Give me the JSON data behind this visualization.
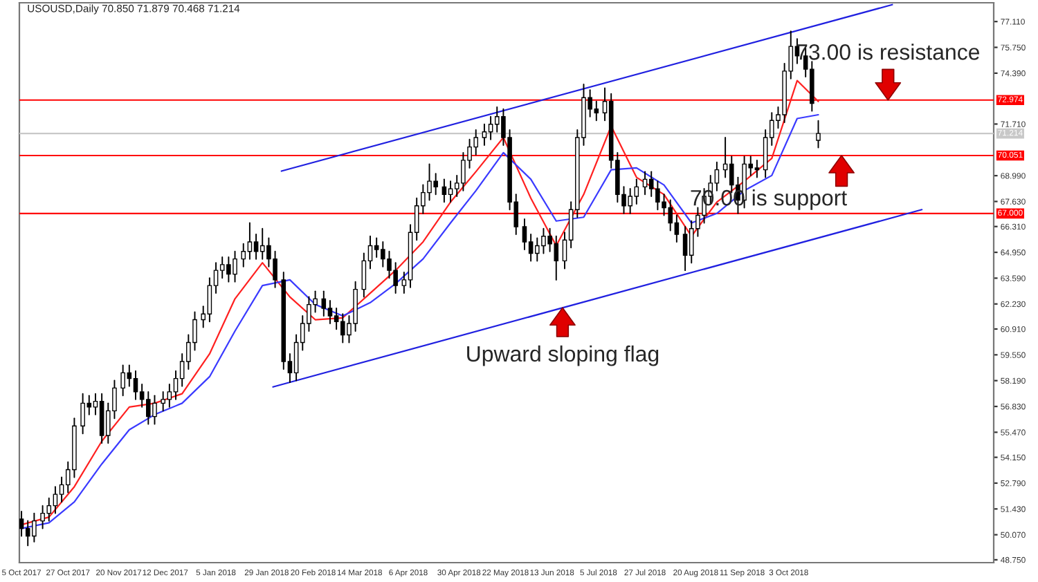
{
  "chart_data": {
    "type": "candlestick",
    "title": "USOUSD,Daily 70.850 71.879 70.468 71.214",
    "x": [
      "2017-10-05",
      "2017-10-08",
      "2017-10-11",
      "2017-10-15",
      "2017-10-18",
      "2017-10-21",
      "2017-10-24",
      "2017-10-27",
      "2017-10-30",
      "2017-11-03",
      "2017-11-06",
      "2017-11-09",
      "2017-11-12",
      "2017-11-15",
      "2017-11-18",
      "2017-11-22",
      "2017-11-25",
      "2017-11-28",
      "2017-12-01",
      "2017-12-04",
      "2017-12-07",
      "2017-12-11",
      "2017-12-14",
      "2017-12-17",
      "2017-12-20",
      "2017-12-23",
      "2017-12-26",
      "2017-12-30",
      "2018-01-02",
      "2018-01-05",
      "2018-01-08",
      "2018-01-11",
      "2018-01-14",
      "2018-01-18",
      "2018-01-21",
      "2018-01-24",
      "2018-01-27",
      "2018-01-30",
      "2018-02-02",
      "2018-02-06",
      "2018-02-09",
      "2018-02-12",
      "2018-02-15",
      "2018-02-18",
      "2018-02-21",
      "2018-02-25",
      "2018-02-28",
      "2018-03-03",
      "2018-03-06",
      "2018-03-09",
      "2018-03-12",
      "2018-03-16",
      "2018-03-19",
      "2018-03-22",
      "2018-03-25",
      "2018-03-28",
      "2018-03-31",
      "2018-04-04",
      "2018-04-07",
      "2018-04-10",
      "2018-04-13",
      "2018-04-16",
      "2018-04-19",
      "2018-04-23",
      "2018-04-26",
      "2018-04-29",
      "2018-05-02",
      "2018-05-05",
      "2018-05-08",
      "2018-05-12",
      "2018-05-15",
      "2018-05-18",
      "2018-05-21",
      "2018-05-24",
      "2018-05-27",
      "2018-05-31",
      "2018-06-03",
      "2018-06-06",
      "2018-06-09",
      "2018-06-12",
      "2018-06-15",
      "2018-06-19",
      "2018-06-22",
      "2018-06-25",
      "2018-06-28",
      "2018-07-01",
      "2018-07-04",
      "2018-07-08",
      "2018-07-11",
      "2018-07-14",
      "2018-07-17",
      "2018-07-20",
      "2018-07-23",
      "2018-07-27",
      "2018-07-30",
      "2018-08-02",
      "2018-08-05",
      "2018-08-08",
      "2018-08-11",
      "2018-08-15",
      "2018-08-18",
      "2018-08-21",
      "2018-08-24",
      "2018-08-27",
      "2018-08-30",
      "2018-09-03",
      "2018-09-06",
      "2018-09-09",
      "2018-09-12",
      "2018-09-15",
      "2018-09-18",
      "2018-09-22",
      "2018-09-25",
      "2018-09-28",
      "2018-10-01",
      "2018-10-04",
      "2018-10-07",
      "2018-10-11",
      "2018-10-14",
      "2018-10-17"
    ],
    "ohlc": [
      [
        50.9,
        51.3,
        50.0,
        50.4
      ],
      [
        50.4,
        50.8,
        49.5,
        50.0
      ],
      [
        50.0,
        51.2,
        49.7,
        50.8
      ],
      [
        50.8,
        51.6,
        50.4,
        51.2
      ],
      [
        51.2,
        52.0,
        50.8,
        51.6
      ],
      [
        51.6,
        52.6,
        51.2,
        52.2
      ],
      [
        52.2,
        53.1,
        51.8,
        52.7
      ],
      [
        52.7,
        53.9,
        52.3,
        53.5
      ],
      [
        53.5,
        56.2,
        53.1,
        55.8
      ],
      [
        55.8,
        57.5,
        55.4,
        57.0
      ],
      [
        57.0,
        57.4,
        56.4,
        56.8
      ],
      [
        56.8,
        57.5,
        56.4,
        57.1
      ],
      [
        57.1,
        57.5,
        54.9,
        55.3
      ],
      [
        55.3,
        57.0,
        54.9,
        56.6
      ],
      [
        56.6,
        58.2,
        56.2,
        57.8
      ],
      [
        57.8,
        59.0,
        57.4,
        58.6
      ],
      [
        58.6,
        59.0,
        57.9,
        58.3
      ],
      [
        58.3,
        58.7,
        57.2,
        57.6
      ],
      [
        57.6,
        58.0,
        56.8,
        57.2
      ],
      [
        57.2,
        57.6,
        55.9,
        56.3
      ],
      [
        56.3,
        57.4,
        55.9,
        57.0
      ],
      [
        57.0,
        57.6,
        56.6,
        57.2
      ],
      [
        57.2,
        58.0,
        56.8,
        57.6
      ],
      [
        57.6,
        58.7,
        57.2,
        58.3
      ],
      [
        58.3,
        59.6,
        57.9,
        59.2
      ],
      [
        59.2,
        60.6,
        58.8,
        60.2
      ],
      [
        60.2,
        61.8,
        59.8,
        61.4
      ],
      [
        61.4,
        62.1,
        61.0,
        61.7
      ],
      [
        61.7,
        63.6,
        61.3,
        63.2
      ],
      [
        63.2,
        64.4,
        62.8,
        64.0
      ],
      [
        64.0,
        64.7,
        63.6,
        64.3
      ],
      [
        64.3,
        64.7,
        63.4,
        63.8
      ],
      [
        63.8,
        65.0,
        63.4,
        64.6
      ],
      [
        64.6,
        65.4,
        64.2,
        65.0
      ],
      [
        65.0,
        66.5,
        64.6,
        65.5
      ],
      [
        65.5,
        65.9,
        64.6,
        65.0
      ],
      [
        65.0,
        66.2,
        64.6,
        65.3
      ],
      [
        65.3,
        65.7,
        64.2,
        64.6
      ],
      [
        64.6,
        65.0,
        63.1,
        63.5
      ],
      [
        63.5,
        63.9,
        58.8,
        59.2
      ],
      [
        59.2,
        59.6,
        58.1,
        58.6
      ],
      [
        58.6,
        60.6,
        58.2,
        60.2
      ],
      [
        60.2,
        61.6,
        59.8,
        61.2
      ],
      [
        61.2,
        62.6,
        60.8,
        62.2
      ],
      [
        62.2,
        62.9,
        61.8,
        62.5
      ],
      [
        62.5,
        62.9,
        61.6,
        62.0
      ],
      [
        62.0,
        62.4,
        61.2,
        61.6
      ],
      [
        61.6,
        62.0,
        60.9,
        61.3
      ],
      [
        61.3,
        61.7,
        60.2,
        60.6
      ],
      [
        60.6,
        61.6,
        60.2,
        61.2
      ],
      [
        61.2,
        63.4,
        60.8,
        63.0
      ],
      [
        63.0,
        64.9,
        62.6,
        64.5
      ],
      [
        64.5,
        65.8,
        64.1,
        65.3
      ],
      [
        65.3,
        65.7,
        64.7,
        65.1
      ],
      [
        65.1,
        65.5,
        64.2,
        64.6
      ],
      [
        64.6,
        65.0,
        63.6,
        64.0
      ],
      [
        64.0,
        64.4,
        62.8,
        63.2
      ],
      [
        63.2,
        63.9,
        62.8,
        63.5
      ],
      [
        63.5,
        66.4,
        63.1,
        66.0
      ],
      [
        66.0,
        67.8,
        65.6,
        67.4
      ],
      [
        67.4,
        68.5,
        67.0,
        68.1
      ],
      [
        68.1,
        69.6,
        67.7,
        68.7
      ],
      [
        68.7,
        69.1,
        68.0,
        68.4
      ],
      [
        68.4,
        68.8,
        67.6,
        68.0
      ],
      [
        68.0,
        68.7,
        67.6,
        68.3
      ],
      [
        68.3,
        69.0,
        67.9,
        68.6
      ],
      [
        68.6,
        70.2,
        68.2,
        69.8
      ],
      [
        69.8,
        70.9,
        69.4,
        70.5
      ],
      [
        70.5,
        71.4,
        70.1,
        71.0
      ],
      [
        71.0,
        71.7,
        70.6,
        71.3
      ],
      [
        71.3,
        72.1,
        70.9,
        71.7
      ],
      [
        71.7,
        72.6,
        71.3,
        72.1
      ],
      [
        72.1,
        72.5,
        70.6,
        71.0
      ],
      [
        71.0,
        71.4,
        67.2,
        67.6
      ],
      [
        67.6,
        68.0,
        65.9,
        66.3
      ],
      [
        66.3,
        66.7,
        65.1,
        65.5
      ],
      [
        65.5,
        65.9,
        64.5,
        64.9
      ],
      [
        64.9,
        65.7,
        64.5,
        65.3
      ],
      [
        65.3,
        66.2,
        64.9,
        65.8
      ],
      [
        65.8,
        66.2,
        65.0,
        65.4
      ],
      [
        65.4,
        65.8,
        63.5,
        64.5
      ],
      [
        64.5,
        66.0,
        64.1,
        65.6
      ],
      [
        65.6,
        67.6,
        65.2,
        67.2
      ],
      [
        67.2,
        71.4,
        66.8,
        71.0
      ],
      [
        71.0,
        73.8,
        70.6,
        73.1
      ],
      [
        73.1,
        73.5,
        72.1,
        72.5
      ],
      [
        72.5,
        72.9,
        71.9,
        72.3
      ],
      [
        72.3,
        73.6,
        71.9,
        72.9
      ],
      [
        72.9,
        73.3,
        69.4,
        69.8
      ],
      [
        69.8,
        70.2,
        67.6,
        68.0
      ],
      [
        68.0,
        68.4,
        67.0,
        67.4
      ],
      [
        67.4,
        68.3,
        67.0,
        67.9
      ],
      [
        67.9,
        68.8,
        67.5,
        68.4
      ],
      [
        68.4,
        69.2,
        68.0,
        68.8
      ],
      [
        68.8,
        69.2,
        67.9,
        68.3
      ],
      [
        68.3,
        68.7,
        67.2,
        67.6
      ],
      [
        67.6,
        68.0,
        66.9,
        67.3
      ],
      [
        67.3,
        67.7,
        66.1,
        66.5
      ],
      [
        66.5,
        66.9,
        65.5,
        65.9
      ],
      [
        65.9,
        66.3,
        64.0,
        64.8
      ],
      [
        64.8,
        66.6,
        64.4,
        66.2
      ],
      [
        66.2,
        67.3,
        65.8,
        66.9
      ],
      [
        66.9,
        68.3,
        66.5,
        67.9
      ],
      [
        67.9,
        69.0,
        67.5,
        68.6
      ],
      [
        68.6,
        69.7,
        68.2,
        69.3
      ],
      [
        69.3,
        71.0,
        68.9,
        69.6
      ],
      [
        69.6,
        70.0,
        68.1,
        68.5
      ],
      [
        68.5,
        68.9,
        67.0,
        67.7
      ],
      [
        67.7,
        70.0,
        67.3,
        69.6
      ],
      [
        69.6,
        70.0,
        69.0,
        69.4
      ],
      [
        69.4,
        69.8,
        68.9,
        69.3
      ],
      [
        69.3,
        71.4,
        68.9,
        71.0
      ],
      [
        71.0,
        72.3,
        70.6,
        71.9
      ],
      [
        71.9,
        72.6,
        71.5,
        72.2
      ],
      [
        72.2,
        74.9,
        71.8,
        74.5
      ],
      [
        74.5,
        76.6,
        74.1,
        75.8
      ],
      [
        75.8,
        76.2,
        74.9,
        75.3
      ],
      [
        75.3,
        75.7,
        74.2,
        74.6
      ],
      [
        74.6,
        75.0,
        72.4,
        72.8
      ],
      [
        70.85,
        71.879,
        70.468,
        71.214
      ]
    ],
    "series": [
      {
        "type": "line",
        "color": "#ff2020",
        "x": [
          "2017-10-05",
          "2017-10-18",
          "2017-10-30",
          "2017-11-12",
          "2017-11-25",
          "2017-12-07",
          "2017-12-20",
          "2018-01-02",
          "2018-01-14",
          "2018-01-27",
          "2018-02-09",
          "2018-02-21",
          "2018-03-06",
          "2018-03-19",
          "2018-03-31",
          "2018-04-13",
          "2018-04-26",
          "2018-05-08",
          "2018-05-21",
          "2018-06-03",
          "2018-06-15",
          "2018-06-28",
          "2018-07-11",
          "2018-07-23",
          "2018-08-05",
          "2018-08-18",
          "2018-08-30",
          "2018-09-12",
          "2018-09-25",
          "2018-10-07",
          "2018-10-17"
        ],
        "values": [
          50.6,
          51.0,
          52.6,
          55.0,
          56.8,
          57.0,
          57.5,
          59.6,
          62.5,
          64.4,
          62.6,
          61.4,
          61.5,
          62.8,
          64.0,
          65.5,
          67.6,
          69.2,
          71.0,
          67.8,
          65.3,
          68.0,
          71.6,
          68.9,
          68.0,
          65.8,
          67.6,
          68.7,
          69.9,
          74.0,
          72.9
        ]
      },
      {
        "type": "line",
        "color": "#3a3aff",
        "x": [
          "2017-10-05",
          "2017-10-18",
          "2017-10-30",
          "2017-11-12",
          "2017-11-25",
          "2017-12-07",
          "2017-12-20",
          "2018-01-02",
          "2018-01-14",
          "2018-01-27",
          "2018-02-09",
          "2018-02-21",
          "2018-03-06",
          "2018-03-19",
          "2018-03-31",
          "2018-04-13",
          "2018-04-26",
          "2018-05-08",
          "2018-05-21",
          "2018-06-03",
          "2018-06-15",
          "2018-06-28",
          "2018-07-11",
          "2018-07-23",
          "2018-08-05",
          "2018-08-18",
          "2018-08-30",
          "2018-09-12",
          "2018-09-25",
          "2018-10-07",
          "2018-10-17"
        ],
        "values": [
          50.4,
          50.7,
          51.8,
          53.8,
          55.6,
          56.4,
          57.0,
          58.4,
          60.8,
          63.2,
          63.5,
          62.2,
          61.6,
          62.3,
          63.3,
          64.6,
          66.5,
          68.2,
          70.2,
          68.8,
          66.6,
          66.8,
          69.3,
          69.4,
          68.5,
          66.5,
          67.0,
          68.2,
          69.0,
          72.0,
          72.2
        ]
      },
      {
        "type": "line",
        "color": "#2020e0",
        "x": [
          "2018-02-05",
          "2018-11-21"
        ],
        "values": [
          69.23,
          78.0
        ]
      },
      {
        "type": "line",
        "color": "#2020e0",
        "x": [
          "2018-02-01",
          "2018-12-05"
        ],
        "values": [
          57.86,
          67.2
        ]
      }
    ],
    "xlim": [
      "2017-10-04",
      "2019-01-08"
    ],
    "xticks": [
      {
        "value": "2017-10-05",
        "label": "5 Oct 2017"
      },
      {
        "value": "2017-10-27",
        "label": "27 Oct 2017"
      },
      {
        "value": "2017-11-20",
        "label": "20 Nov 2017"
      },
      {
        "value": "2017-12-12",
        "label": "12 Dec 2017"
      },
      {
        "value": "2018-01-05",
        "label": "5 Jan 2018"
      },
      {
        "value": "2018-01-29",
        "label": "29 Jan 2018"
      },
      {
        "value": "2018-02-20",
        "label": "20 Feb 2018"
      },
      {
        "value": "2018-03-14",
        "label": "14 Mar 2018"
      },
      {
        "value": "2018-04-06",
        "label": "6 Apr 2018"
      },
      {
        "value": "2018-04-30",
        "label": "30 Apr 2018"
      },
      {
        "value": "2018-05-22",
        "label": "22 May 2018"
      },
      {
        "value": "2018-06-13",
        "label": "13 Jun 2018"
      },
      {
        "value": "2018-07-05",
        "label": "5 Jul 2018"
      },
      {
        "value": "2018-07-27",
        "label": "27 Jul 2018"
      },
      {
        "value": "2018-08-20",
        "label": "20 Aug 2018"
      },
      {
        "value": "2018-09-11",
        "label": "11 Sep 2018"
      },
      {
        "value": "2018-10-03",
        "label": "3 Oct 2018"
      }
    ],
    "ylim": [
      48.6,
      78.1
    ],
    "yticks": [
      {
        "value": 48.75,
        "label": "48.750"
      },
      {
        "value": 50.07,
        "label": "50.070"
      },
      {
        "value": 51.43,
        "label": "51.430"
      },
      {
        "value": 52.79,
        "label": "52.790"
      },
      {
        "value": 54.15,
        "label": "54.150"
      },
      {
        "value": 55.47,
        "label": "55.470"
      },
      {
        "value": 56.83,
        "label": "56.830"
      },
      {
        "value": 58.19,
        "label": "58.190"
      },
      {
        "value": 59.55,
        "label": "59.550"
      },
      {
        "value": 60.91,
        "label": "60.910"
      },
      {
        "value": 62.23,
        "label": "62.230"
      },
      {
        "value": 63.59,
        "label": "63.590"
      },
      {
        "value": 64.95,
        "label": "64.950"
      },
      {
        "value": 66.31,
        "label": "66.310"
      },
      {
        "value": 67.63,
        "label": "67.630"
      },
      {
        "value": 68.99,
        "label": "68.990"
      },
      {
        "value": 71.71,
        "label": "71.710"
      },
      {
        "value": 74.39,
        "label": "74.390"
      },
      {
        "value": 75.75,
        "label": "75.750"
      },
      {
        "value": 77.11,
        "label": "77.110"
      }
    ],
    "ref_lines": [
      {
        "axis": "y",
        "value": 72.974,
        "label": "72.974",
        "color": "#ff0000"
      },
      {
        "axis": "y",
        "value": 71.214,
        "label": "71.214",
        "color": "#c8c8c8"
      },
      {
        "axis": "y",
        "value": 70.051,
        "label": "70.051",
        "color": "#ff0000"
      },
      {
        "axis": "y",
        "value": 67.0,
        "label": "67.000",
        "color": "#ff0000"
      }
    ],
    "annotations": [
      {
        "text": "73.00 is resistance",
        "x": "2018-11-19",
        "y": 72.974
      },
      {
        "text": "70.00 is support",
        "x": "2018-10-28",
        "y": 70.051
      },
      {
        "text": "Upward sloping flag",
        "x": "2018-06-18",
        "y": 62.03
      }
    ]
  }
}
